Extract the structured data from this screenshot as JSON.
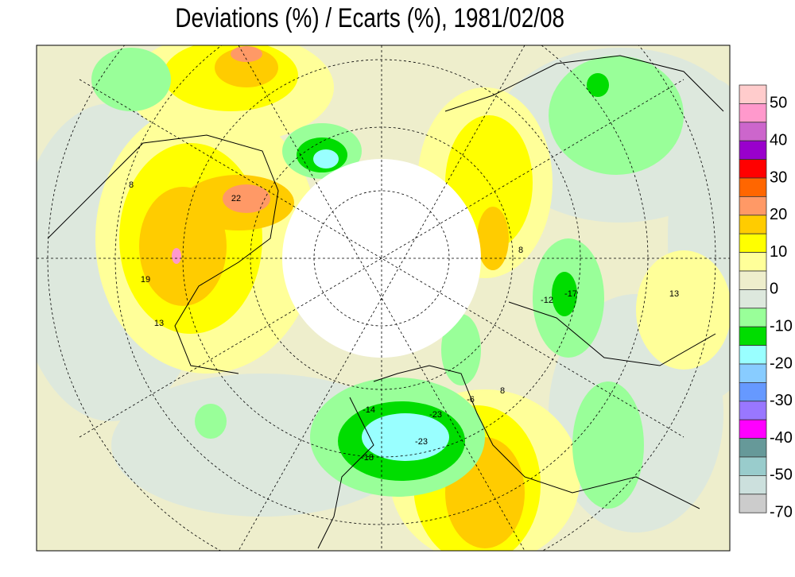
{
  "title": "Deviations (%) / Ecarts (%), 1981/02/08",
  "legend": {
    "colors": [
      "#ffcccc",
      "#ff99cc",
      "#cc66cc",
      "#9900cc",
      "#ff0000",
      "#ff6600",
      "#ff9966",
      "#ffcc00",
      "#ffff00",
      "#ffff99",
      "#eeeecc",
      "#dde8dd",
      "#99ff99",
      "#00dd00",
      "#99ffff",
      "#88ccff",
      "#6699ff",
      "#9977ff",
      "#ff00ff",
      "#669999",
      "#99cccc",
      "#cce0dd",
      "#cccccc"
    ],
    "labels": [
      50,
      40,
      30,
      20,
      10,
      0,
      -10,
      -20,
      -30,
      -40,
      -50,
      -70
    ]
  },
  "map_labels": [
    "8",
    "19",
    "22",
    "13",
    "-12",
    "-17",
    "-23",
    "-23",
    "-18",
    "-14",
    "-6",
    "8",
    "13",
    "8"
  ]
}
